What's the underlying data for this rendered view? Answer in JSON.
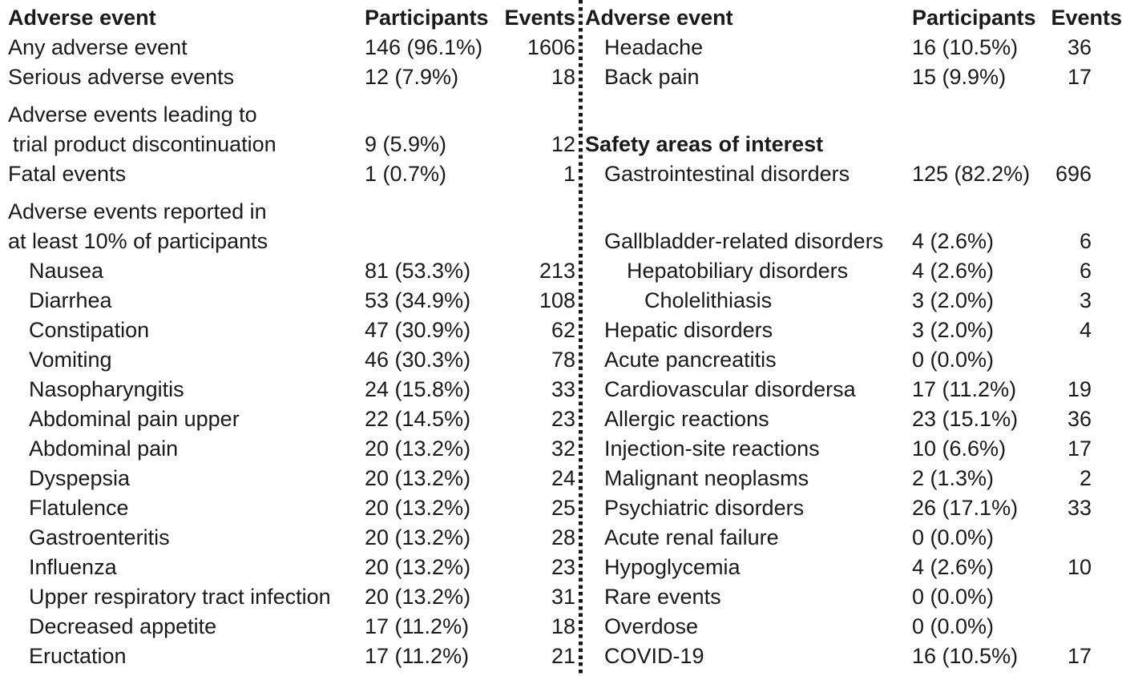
{
  "left_table": {
    "header": {
      "event": "Adverse event",
      "participants": "Participants",
      "events": "Events"
    },
    "rows": [
      {
        "label": "Any adverse event",
        "indent": 0,
        "participants": "146 (96.1%)",
        "events": "1606"
      },
      {
        "label": "Serious adverse events",
        "indent": 0,
        "participants": "12 (7.9%)",
        "events": "18"
      },
      {
        "label": "Adverse events leading to",
        "indent": 0,
        "participants": "",
        "events": "",
        "gap_before": true
      },
      {
        "label": "trial product discontinuation",
        "indent": 1,
        "participants": "9 (5.9%)",
        "events": "12"
      },
      {
        "label": "Fatal events",
        "indent": 0,
        "participants": "1 (0.7%)",
        "events": "1"
      },
      {
        "label": "Adverse events reported in",
        "indent": 0,
        "participants": "",
        "events": "",
        "gap_before": true
      },
      {
        "label": "at least 10% of participants",
        "indent": 0,
        "participants": "",
        "events": ""
      },
      {
        "label": "Nausea",
        "indent": 2,
        "participants": "81 (53.3%)",
        "events": "213"
      },
      {
        "label": "Diarrhea",
        "indent": 2,
        "participants": "53 (34.9%)",
        "events": "108"
      },
      {
        "label": "Constipation",
        "indent": 2,
        "participants": "47 (30.9%)",
        "events": "62"
      },
      {
        "label": "Vomiting",
        "indent": 2,
        "participants": "46 (30.3%)",
        "events": "78"
      },
      {
        "label": "Nasopharyngitis",
        "indent": 2,
        "participants": "24 (15.8%)",
        "events": "33"
      },
      {
        "label": "Abdominal pain upper",
        "indent": 2,
        "participants": "22 (14.5%)",
        "events": "23"
      },
      {
        "label": "Abdominal pain",
        "indent": 2,
        "participants": "20 (13.2%)",
        "events": "32"
      },
      {
        "label": "Dyspepsia",
        "indent": 2,
        "participants": "20 (13.2%)",
        "events": "24"
      },
      {
        "label": "Flatulence",
        "indent": 2,
        "participants": "20 (13.2%)",
        "events": "25"
      },
      {
        "label": "Gastroenteritis",
        "indent": 2,
        "participants": "20 (13.2%)",
        "events": "28"
      },
      {
        "label": "Influenza",
        "indent": 2,
        "participants": "20 (13.2%)",
        "events": "23"
      },
      {
        "label": "Upper respiratory tract infection",
        "indent": 2,
        "participants": "20 (13.2%)",
        "events": "31"
      },
      {
        "label": "Decreased appetite",
        "indent": 2,
        "participants": "17 (11.2%)",
        "events": "18"
      },
      {
        "label": "Eructation",
        "indent": 2,
        "participants": "17 (11.2%)",
        "events": "21"
      }
    ]
  },
  "right_table": {
    "header": {
      "event": "Adverse event",
      "participants": "Participants",
      "events": "Events"
    },
    "rows": [
      {
        "label": "Headache",
        "indent": 1,
        "participants": "16 (10.5%)",
        "events": "36"
      },
      {
        "label": "Back pain",
        "indent": 1,
        "participants": "15 (9.9%)",
        "events": "17"
      },
      {
        "label": "",
        "indent": 0,
        "participants": "",
        "events": ""
      },
      {
        "label": "Safety areas of interest",
        "indent": 0,
        "participants": "",
        "events": "",
        "bold": true
      },
      {
        "label": "Gastrointestinal disorders",
        "indent": 1,
        "participants": "125 (82.2%)",
        "events": "696"
      },
      {
        "label": "",
        "indent": 0,
        "participants": "",
        "events": ""
      },
      {
        "label": "Gallbladder-related disorders",
        "indent": 1,
        "participants": "4 (2.6%)",
        "events": "6"
      },
      {
        "label": "Hepatobiliary disorders",
        "indent": 2,
        "participants": "4 (2.6%)",
        "events": "6"
      },
      {
        "label": "Cholelithiasis",
        "indent": 3,
        "participants": "3 (2.0%)",
        "events": "3"
      },
      {
        "label": "Hepatic disorders",
        "indent": 1,
        "participants": "3 (2.0%)",
        "events": "4"
      },
      {
        "label": "Acute pancreatitis",
        "indent": 1,
        "participants": "0 (0.0%)",
        "events": ""
      },
      {
        "label": "Cardiovascular disordersa",
        "indent": 1,
        "participants": "17 (11.2%)",
        "events": "19"
      },
      {
        "label": "Allergic reactions",
        "indent": 1,
        "participants": "23 (15.1%)",
        "events": "36"
      },
      {
        "label": "Injection-site reactions",
        "indent": 1,
        "participants": "10 (6.6%)",
        "events": "17"
      },
      {
        "label": "Malignant neoplasms",
        "indent": 1,
        "participants": "2 (1.3%)",
        "events": "2"
      },
      {
        "label": "Psychiatric disorders",
        "indent": 1,
        "participants": "26 (17.1%)",
        "events": "33"
      },
      {
        "label": "Acute renal failure",
        "indent": 1,
        "participants": "0 (0.0%)",
        "events": ""
      },
      {
        "label": "Hypoglycemia",
        "indent": 1,
        "participants": "4 (2.6%)",
        "events": "10"
      },
      {
        "label": "Rare events",
        "indent": 1,
        "participants": "0 (0.0%)",
        "events": ""
      },
      {
        "label": "Overdose",
        "indent": 1,
        "participants": "0 (0.0%)",
        "events": ""
      },
      {
        "label": "COVID-19",
        "indent": 1,
        "participants": "16 (10.5%)",
        "events": "17"
      }
    ]
  },
  "divider_color": "#151515",
  "text_color": "#1a1a1a",
  "background_color": "#ffffff"
}
